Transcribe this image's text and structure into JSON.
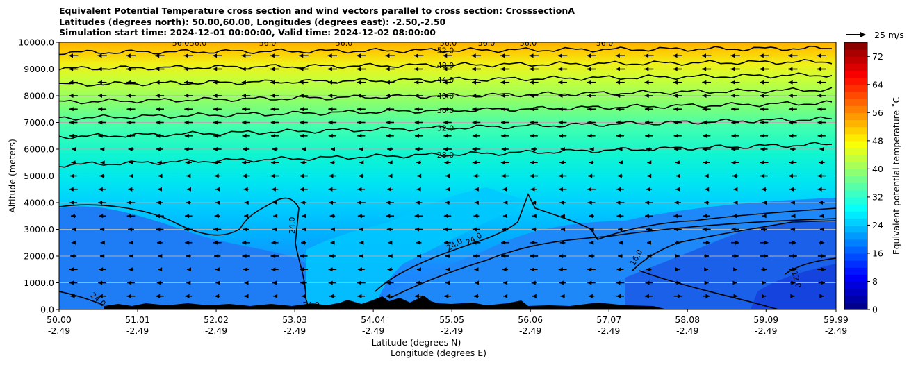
{
  "titles": {
    "line1": "Equivalent Potential Temperature cross section and wind vectors parallel to cross section: CrosssectionA",
    "line2": "Latitudes (degrees north): 50.00,60.00, Longitudes (degrees east): -2.50,-2.50",
    "line3": "Simulation start time: 2024-12-01 00:00:00, Valid time: 2024-12-02 08:00:00"
  },
  "chart_data": {
    "type": "heatmap",
    "title": "Equivalent Potential Temperature cross section and wind vectors parallel to cross section: CrosssectionA",
    "ylabel": "Altitude (meters)",
    "xlabel_lat": "Latitude (degrees N)",
    "xlabel_lon": "Longitude (degrees E)",
    "ylim": [
      0,
      10000
    ],
    "xlim": [
      50.0,
      59.99
    ],
    "y_ticks": [
      "0.0",
      "1000.0",
      "2000.0",
      "3000.0",
      "4000.0",
      "5000.0",
      "6000.0",
      "7000.0",
      "8000.0",
      "9000.0",
      "10000.0"
    ],
    "y_tick_values": [
      0,
      1000,
      2000,
      3000,
      4000,
      5000,
      6000,
      7000,
      8000,
      9000,
      10000
    ],
    "x_ticks": [
      {
        "lat": "50.00",
        "lon": "-2.49"
      },
      {
        "lat": "51.01",
        "lon": "-2.49"
      },
      {
        "lat": "52.02",
        "lon": "-2.49"
      },
      {
        "lat": "53.03",
        "lon": "-2.49"
      },
      {
        "lat": "54.04",
        "lon": "-2.49"
      },
      {
        "lat": "55.05",
        "lon": "-2.49"
      },
      {
        "lat": "56.06",
        "lon": "-2.49"
      },
      {
        "lat": "57.07",
        "lon": "-2.49"
      },
      {
        "lat": "58.08",
        "lon": "-2.49"
      },
      {
        "lat": "59.09",
        "lon": "-2.49"
      },
      {
        "lat": "59.99",
        "lon": "-2.49"
      }
    ],
    "grid": true,
    "colorbar": {
      "label": "Equivalent potential temperature ˚C",
      "min": 0,
      "max": 76,
      "step": 2,
      "ticks": [
        "0",
        "8",
        "16",
        "24",
        "32",
        "40",
        "48",
        "56",
        "64",
        "72"
      ],
      "tick_values": [
        0,
        8,
        16,
        24,
        32,
        40,
        48,
        56,
        64,
        72
      ],
      "colormap": "jet"
    },
    "wind_key": {
      "label": "25 m/s"
    },
    "contour_labels_top": [
      "56.0",
      "52.0",
      "48.0",
      "44.0",
      "40.0",
      "36.0",
      "32.0",
      "28.0"
    ],
    "contour_levels_top": [
      {
        "label": "52.0",
        "y": 9700
      },
      {
        "label": "48.0",
        "y": 9150
      },
      {
        "label": "44.0",
        "y": 8600
      },
      {
        "label": "40.0",
        "y": 8000
      },
      {
        "label": "36.0",
        "y": 7450
      },
      {
        "label": "32.0",
        "y": 6800
      },
      {
        "label": "28.0",
        "y": 5800
      }
    ],
    "contour_labels_low": [
      "24.0",
      "24.0",
      "24.0",
      "24.0",
      "24.0",
      "16.0",
      "12.0"
    ],
    "lower_contours": [
      {
        "label": "24.0",
        "x": 53.03,
        "y": 3150,
        "rot": -90
      },
      {
        "label": "24.0",
        "x": 53.24,
        "y": 80,
        "rot": 0
      },
      {
        "label": "24.0",
        "x": 50.48,
        "y": 300,
        "rot": 40
      },
      {
        "label": "24.0",
        "x": 55.1,
        "y": 2350,
        "rot": -30
      },
      {
        "label": "24.0",
        "x": 55.35,
        "y": 2560,
        "rot": -30
      },
      {
        "label": "16.0",
        "x": 57.45,
        "y": 1900,
        "rot": -60
      },
      {
        "label": "12.0",
        "x": 59.45,
        "y": 1100,
        "rot": 75
      }
    ],
    "wind_note": "wind vectors mostly pointing toward decreasing latitude (left); rightward near surface over 58-60N"
  }
}
